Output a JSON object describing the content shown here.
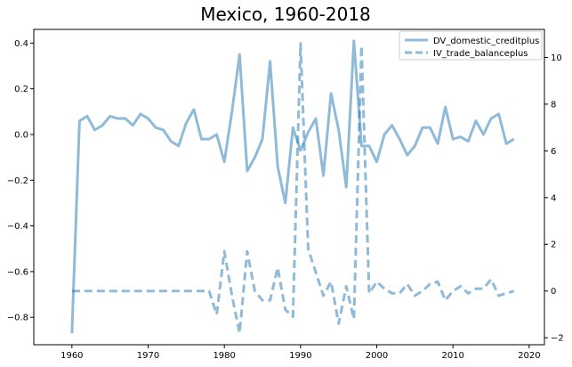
{
  "chart_data": {
    "type": "line",
    "title": "Mexico, 1960-2018",
    "xlabel": "",
    "ylabel_left": "",
    "ylabel_right": "",
    "xlim": [
      1955,
      2022
    ],
    "ylim_left": [
      -0.92,
      0.46
    ],
    "ylim_right": [
      -2.3,
      11.2
    ],
    "xticks": [
      1960,
      1970,
      1980,
      1990,
      2000,
      2010,
      2020
    ],
    "yticks_left": [
      -0.8,
      -0.6,
      -0.4,
      -0.2,
      0.0,
      0.2,
      0.4
    ],
    "ytick_labels_left": [
      "−0.8",
      "−0.6",
      "−0.4",
      "−0.2",
      "0.0",
      "0.2",
      "0.4"
    ],
    "yticks_right": [
      -2,
      0,
      2,
      4,
      6,
      8,
      10
    ],
    "grid": false,
    "legend_position": "top-right",
    "series": [
      {
        "name": "DV_domestic_creditplus",
        "axis": "left",
        "style": "solid",
        "color": "#1f77b4",
        "x": [
          1960,
          1961,
          1962,
          1963,
          1964,
          1965,
          1966,
          1967,
          1968,
          1969,
          1970,
          1971,
          1972,
          1973,
          1974,
          1975,
          1976,
          1977,
          1978,
          1979,
          1980,
          1981,
          1982,
          1983,
          1984,
          1985,
          1986,
          1987,
          1988,
          1989,
          1990,
          1991,
          1992,
          1993,
          1994,
          1995,
          1996,
          1997,
          1998,
          1999,
          2000,
          2001,
          2002,
          2003,
          2004,
          2005,
          2006,
          2007,
          2008,
          2009,
          2010,
          2011,
          2012,
          2013,
          2014,
          2015,
          2016,
          2017,
          2018
        ],
        "values": [
          -0.87,
          0.06,
          0.08,
          0.02,
          0.04,
          0.08,
          0.07,
          0.07,
          0.04,
          0.09,
          0.07,
          0.03,
          0.02,
          -0.03,
          -0.05,
          0.05,
          0.11,
          -0.02,
          -0.02,
          0.0,
          -0.12,
          0.1,
          0.35,
          -0.16,
          -0.1,
          -0.02,
          0.32,
          -0.14,
          -0.3,
          0.03,
          -0.07,
          0.01,
          0.07,
          -0.18,
          0.18,
          0.02,
          -0.23,
          0.41,
          -0.05,
          -0.05,
          -0.12,
          0.0,
          0.04,
          -0.02,
          -0.09,
          -0.05,
          0.03,
          0.03,
          -0.04,
          0.12,
          -0.02,
          -0.01,
          -0.03,
          0.06,
          0.0,
          0.07,
          0.09,
          -0.04,
          -0.02
        ]
      },
      {
        "name": "IV_trade_balanceplus",
        "axis": "right",
        "style": "dashed",
        "color": "#1f77b4",
        "x": [
          1960,
          1961,
          1962,
          1963,
          1964,
          1965,
          1966,
          1967,
          1968,
          1969,
          1970,
          1971,
          1972,
          1973,
          1974,
          1975,
          1976,
          1977,
          1978,
          1979,
          1980,
          1981,
          1982,
          1983,
          1984,
          1985,
          1986,
          1987,
          1988,
          1989,
          1990,
          1991,
          1992,
          1993,
          1994,
          1995,
          1996,
          1997,
          1998,
          1999,
          2000,
          2001,
          2002,
          2003,
          2004,
          2005,
          2006,
          2007,
          2008,
          2009,
          2010,
          2011,
          2012,
          2013,
          2014,
          2015,
          2016,
          2017,
          2018
        ],
        "values": [
          0,
          0,
          0,
          0,
          0,
          0,
          0,
          0,
          0,
          0,
          0,
          0,
          0,
          0,
          0,
          0,
          0,
          0,
          0,
          -1.0,
          1.7,
          -0.2,
          -1.8,
          1.7,
          0,
          -0.4,
          -0.4,
          1.0,
          -0.8,
          -1.1,
          10.6,
          1.8,
          0.8,
          -0.2,
          0.4,
          -1.4,
          0.2,
          -1.2,
          10.5,
          -0.1,
          0.4,
          0.1,
          -0.1,
          -0.1,
          0.3,
          -0.2,
          0,
          0.3,
          0.4,
          -0.4,
          0,
          0.2,
          -0.1,
          0.1,
          0.1,
          0.5,
          -0.2,
          -0.1,
          0
        ]
      }
    ]
  }
}
